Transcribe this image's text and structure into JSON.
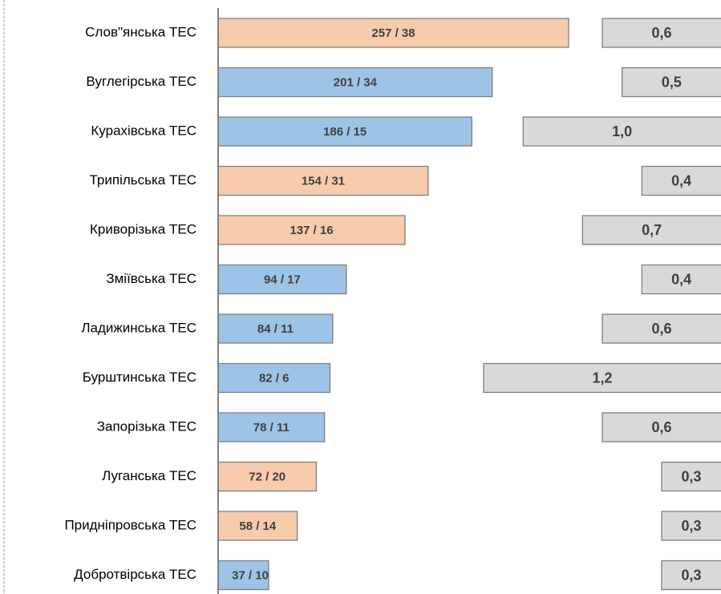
{
  "chart_data": {
    "type": "bar",
    "categories": [
      "Слов\"янська ТЕС",
      "Вуглегірська ТЕС",
      "Курахівська ТЕС",
      "Трипільська ТЕС",
      "Криворізька ТЕС",
      "Зміївська ТЕС",
      "Ладижинська ТЕС",
      "Бурштинська ТЕС",
      "Запорізька ТЕС",
      "Луганська ТЕС",
      "Придніпровська ТЕС",
      "Добротвірська ТЕС"
    ],
    "xlim": [
      0,
      257
    ],
    "x2lim": [
      0,
      1.2
    ],
    "series": [
      {
        "values": [
          257,
          201,
          186,
          154,
          137,
          94,
          84,
          82,
          78,
          72,
          58,
          37
        ],
        "value_labels": [
          "257 / 38",
          "201 / 34",
          "186 / 15",
          "154 / 31",
          "137 / 16",
          "94 / 17",
          "84 / 11",
          "82 / 6",
          "78 / 11",
          "72 / 20",
          "58 / 14",
          "37 / 10"
        ],
        "colors": [
          "#f8cbad",
          "#9dc3e6",
          "#9dc3e6",
          "#f8cbad",
          "#f8cbad",
          "#9dc3e6",
          "#9dc3e6",
          "#9dc3e6",
          "#9dc3e6",
          "#f8cbad",
          "#f8cbad",
          "#9dc3e6"
        ]
      },
      {
        "axis": "x2",
        "color": "#d9d9d9",
        "values": [
          0.6,
          0.5,
          1.0,
          0.4,
          0.7,
          0.4,
          0.6,
          1.2,
          0.6,
          0.3,
          0.3,
          0.3
        ],
        "value_labels": [
          "0,6",
          "0,5",
          "1,0",
          "0,4",
          "0,7",
          "0,4",
          "0,6",
          "1,2",
          "0,6",
          "0,3",
          "0,3",
          "0,3"
        ]
      }
    ]
  }
}
